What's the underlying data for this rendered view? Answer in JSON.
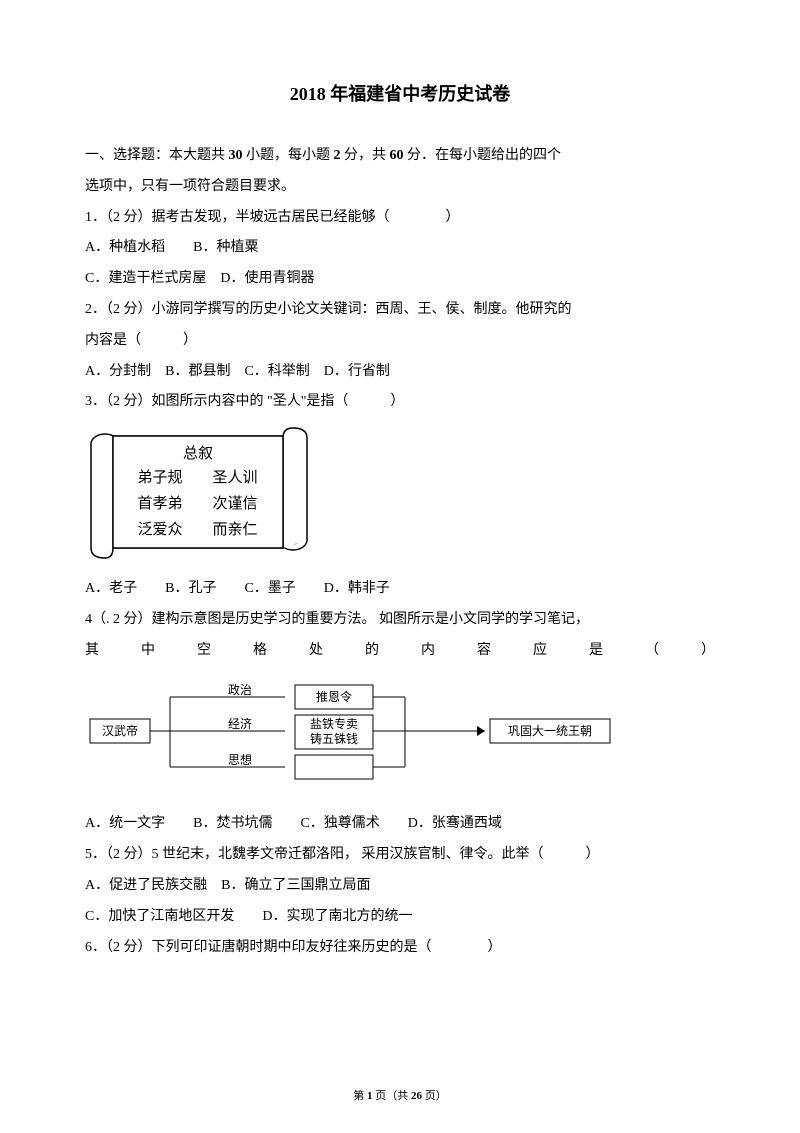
{
  "title": "2018 年福建省中考历史试卷",
  "section": {
    "header_pre": "一、选择题：本大题共",
    "count": "30",
    "header_mid1": "小题，每小题",
    "points": "2",
    "header_mid2": "分，共",
    "total": "60",
    "header_mid3": "分．在每小题给出的四个",
    "header_line2": "选项中，只有一项符合题目要求。"
  },
  "q1": {
    "stem": "1．（2 分）据考古发现，半坡远古居民已经能够（　　　　）",
    "optA": "A．种植水稻　　B．种植粟",
    "optC": "C．建造干栏式房屋　D．使用青铜器"
  },
  "q2": {
    "stem1": "2．（2 分）小游同学撰写的历史小论文关键词：西周、王、侯、制度。他研究的",
    "stem2": "内容是（　　　）",
    "opts": "A．分封制　B．郡县制　C．科举制　D．行省制"
  },
  "q3": {
    "stem": "3．（2 分）如图所示内容中的 \"圣人\"是指（　　　）",
    "scroll": {
      "line1": "总叙",
      "line2a": "弟子规",
      "line2b": "圣人训",
      "line3a": "首孝弟",
      "line3b": "次谨信",
      "line4a": "泛爱众",
      "line4b": "而亲仁"
    },
    "opts": "A．老子　　B．孔子　　C．墨子　　D．韩非子"
  },
  "q4": {
    "stem1": "4（. 2 分）建构示意图是历史学习的重要方法。",
    "stem1b": "如图所示是小文同学的学习笔记，",
    "stem2_chars": [
      "其",
      "中",
      "空",
      "格",
      "处",
      "的",
      "内",
      "容",
      "应",
      "是",
      "（",
      "）"
    ],
    "diagram": {
      "left": "汉武帝",
      "branch1_label": "政治",
      "branch1_box": "推恩令",
      "branch2_label": "经济",
      "branch2_box_l1": "盐铁专卖",
      "branch2_box_l2": "铸五铢钱",
      "branch3_label": "思想",
      "right": "巩固大一统王朝"
    },
    "opts": "A．统一文字　　B．焚书坑儒　　C．独尊儒术　　D．张骞通西域"
  },
  "q5": {
    "stem_a": "5．（2 分）5 世纪末，北魏孝文帝迁都洛阳，",
    "stem_b": "采用汉族官制、律令。此举（　　　）",
    "optA": "A．促进了民族交融　B．确立了三国鼎立局面",
    "optC": "C．加快了江南地区开发　　D．实现了南北方的统一"
  },
  "q6": {
    "stem": "6．（2 分）下列可印证唐朝时期中印友好往来历史的是（　　　　）"
  },
  "footer": {
    "pre": "第 ",
    "page": "1",
    "mid": " 页（共 ",
    "total": "26",
    "post": " 页）"
  }
}
